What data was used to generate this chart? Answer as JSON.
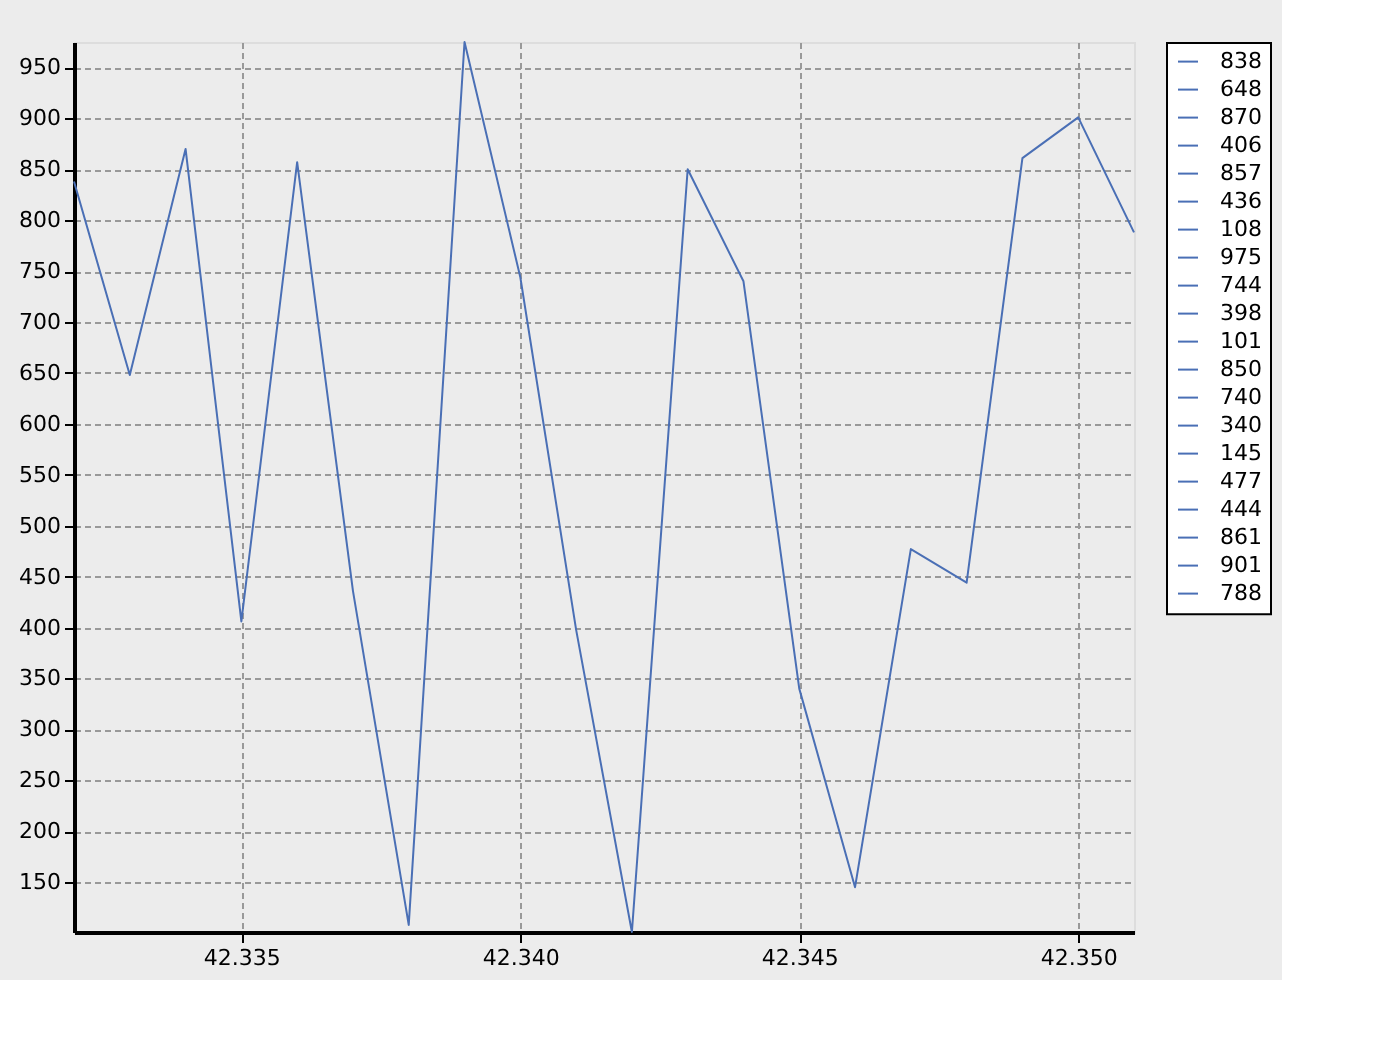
{
  "chart_data": {
    "type": "line",
    "x": [
      42.332,
      42.333,
      42.334,
      42.335,
      42.336,
      42.337,
      42.338,
      42.339,
      42.34,
      42.341,
      42.342,
      42.343,
      42.344,
      42.345,
      42.346,
      42.347,
      42.348,
      42.349,
      42.35,
      42.351
    ],
    "series": [
      {
        "color": "#4a6fb5",
        "values": [
          838,
          648,
          870,
          406,
          857,
          436,
          108,
          975,
          744,
          398,
          101,
          850,
          740,
          340,
          145,
          477,
          444,
          861,
          901,
          788
        ],
        "line_style": "solid"
      }
    ],
    "annotations": [
      "838",
      "648",
      "870",
      "406",
      "857",
      "436",
      "108",
      "975",
      "744",
      "398",
      "101",
      "850",
      "740",
      "340",
      "145",
      "477",
      "444",
      "861",
      "901",
      "788"
    ],
    "xlim": [
      42.332,
      42.351
    ],
    "xticks": [
      {
        "value": 42.335,
        "label": "42.335"
      },
      {
        "value": 42.34,
        "label": "42.340"
      },
      {
        "value": 42.345,
        "label": "42.345"
      },
      {
        "value": 42.35,
        "label": "42.350"
      }
    ],
    "ylim": [
      101,
      975
    ],
    "yticks": [
      150,
      200,
      250,
      300,
      350,
      400,
      450,
      500,
      550,
      600,
      650,
      700,
      750,
      800,
      850,
      900,
      950
    ],
    "grid": true,
    "marker": "none"
  }
}
